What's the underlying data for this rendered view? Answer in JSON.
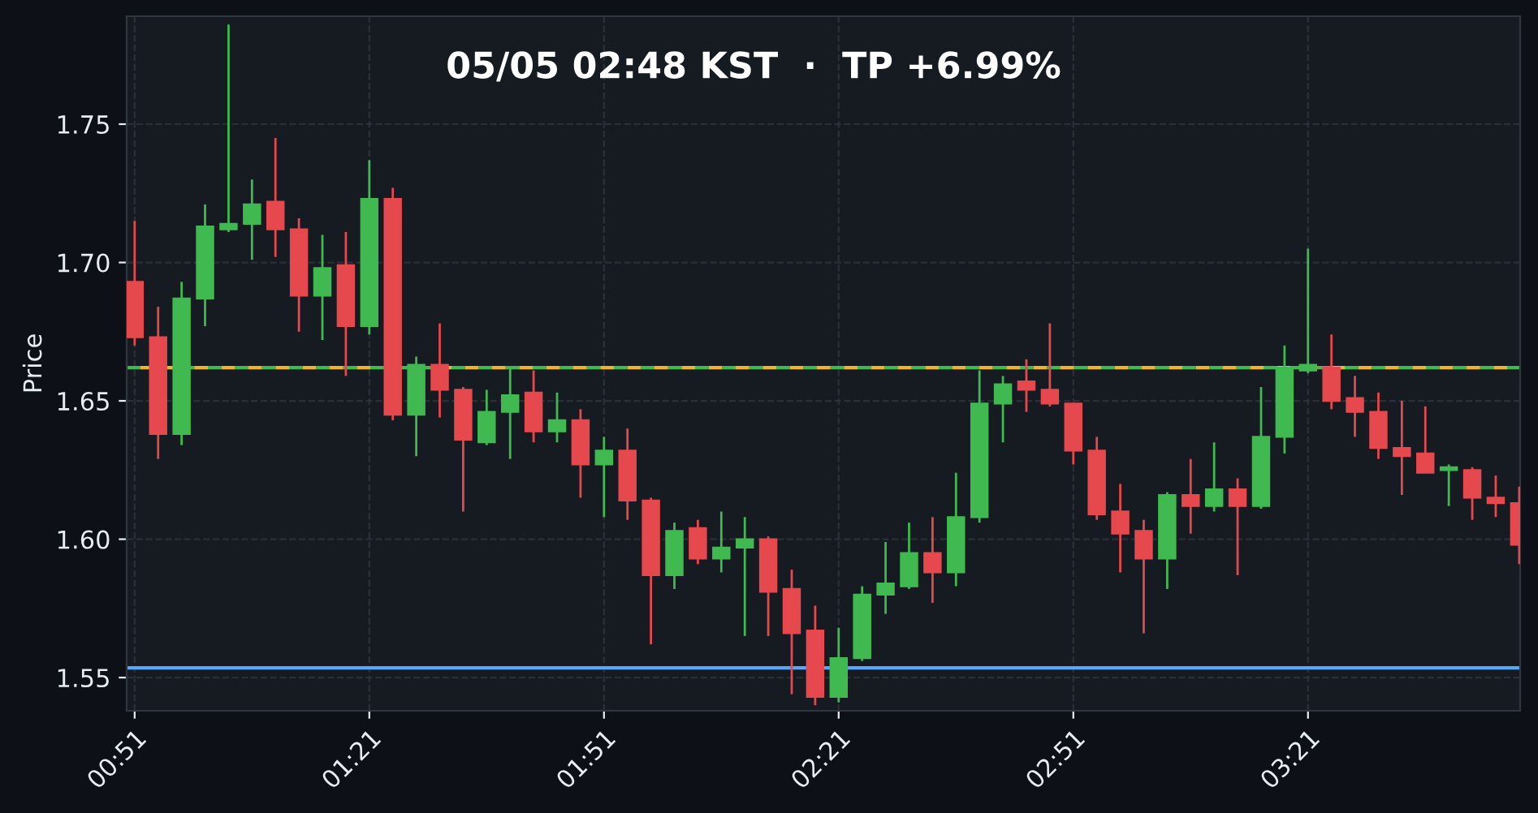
{
  "chart_data": {
    "type": "candlestick",
    "title": "05/05 02:48 KST  ·  TP +6.99%",
    "ylabel": "Price",
    "x": [
      0.85,
      0.9,
      0.95,
      1.0,
      1.05,
      1.1,
      1.15,
      1.2,
      1.25,
      1.3,
      1.35,
      1.4,
      1.45,
      1.5,
      1.55,
      1.6,
      1.65,
      1.7,
      1.75,
      1.8,
      1.85,
      1.9,
      1.95,
      2.0,
      2.05,
      2.1,
      2.15,
      2.2,
      2.25,
      2.3,
      2.35,
      2.4,
      2.45,
      2.5,
      2.55,
      2.6,
      2.65,
      2.7,
      2.75,
      2.8,
      2.85,
      2.9,
      2.95,
      3.0,
      3.05,
      3.1,
      3.15,
      3.2,
      3.25,
      3.3,
      3.35,
      3.4,
      3.45,
      3.5,
      3.55,
      3.6,
      3.65,
      3.7,
      3.75,
      3.8
    ],
    "ohlc": [
      [
        1.693,
        1.715,
        1.67,
        1.673
      ],
      [
        1.673,
        1.684,
        1.629,
        1.638
      ],
      [
        1.638,
        1.693,
        1.634,
        1.687
      ],
      [
        1.687,
        1.721,
        1.677,
        1.713
      ],
      [
        1.712,
        1.786,
        1.711,
        1.714
      ],
      [
        1.714,
        1.73,
        1.701,
        1.721
      ],
      [
        1.722,
        1.745,
        1.702,
        1.712
      ],
      [
        1.712,
        1.716,
        1.675,
        1.688
      ],
      [
        1.688,
        1.71,
        1.672,
        1.698
      ],
      [
        1.699,
        1.711,
        1.659,
        1.677
      ],
      [
        1.677,
        1.737,
        1.674,
        1.723
      ],
      [
        1.723,
        1.727,
        1.643,
        1.645
      ],
      [
        1.645,
        1.666,
        1.63,
        1.663
      ],
      [
        1.663,
        1.678,
        1.644,
        1.654
      ],
      [
        1.654,
        1.655,
        1.61,
        1.636
      ],
      [
        1.635,
        1.654,
        1.634,
        1.646
      ],
      [
        1.646,
        1.662,
        1.629,
        1.652
      ],
      [
        1.653,
        1.661,
        1.635,
        1.639
      ],
      [
        1.639,
        1.653,
        1.635,
        1.643
      ],
      [
        1.643,
        1.647,
        1.615,
        1.627
      ],
      [
        1.627,
        1.637,
        1.608,
        1.632
      ],
      [
        1.632,
        1.64,
        1.607,
        1.614
      ],
      [
        1.614,
        1.615,
        1.562,
        1.587
      ],
      [
        1.587,
        1.606,
        1.582,
        1.603
      ],
      [
        1.604,
        1.607,
        1.591,
        1.593
      ],
      [
        1.593,
        1.61,
        1.588,
        1.597
      ],
      [
        1.597,
        1.608,
        1.565,
        1.6
      ],
      [
        1.6,
        1.601,
        1.565,
        1.581
      ],
      [
        1.582,
        1.589,
        1.544,
        1.566
      ],
      [
        1.567,
        1.576,
        1.54,
        1.543
      ],
      [
        1.543,
        1.568,
        1.541,
        1.557
      ],
      [
        1.557,
        1.583,
        1.556,
        1.58
      ],
      [
        1.58,
        1.599,
        1.573,
        1.584
      ],
      [
        1.583,
        1.606,
        1.582,
        1.595
      ],
      [
        1.595,
        1.608,
        1.577,
        1.588
      ],
      [
        1.588,
        1.624,
        1.583,
        1.608
      ],
      [
        1.608,
        1.661,
        1.606,
        1.649
      ],
      [
        1.649,
        1.659,
        1.635,
        1.656
      ],
      [
        1.657,
        1.665,
        1.646,
        1.654
      ],
      [
        1.654,
        1.678,
        1.648,
        1.649
      ],
      [
        1.649,
        1.649,
        1.627,
        1.632
      ],
      [
        1.632,
        1.637,
        1.607,
        1.609
      ],
      [
        1.61,
        1.62,
        1.588,
        1.602
      ],
      [
        1.603,
        1.607,
        1.566,
        1.593
      ],
      [
        1.593,
        1.617,
        1.582,
        1.616
      ],
      [
        1.616,
        1.629,
        1.602,
        1.612
      ],
      [
        1.612,
        1.635,
        1.61,
        1.618
      ],
      [
        1.618,
        1.622,
        1.587,
        1.612
      ],
      [
        1.612,
        1.655,
        1.611,
        1.637
      ],
      [
        1.637,
        1.67,
        1.631,
        1.662
      ],
      [
        1.661,
        1.705,
        1.66,
        1.663
      ],
      [
        1.662,
        1.674,
        1.647,
        1.65
      ],
      [
        1.651,
        1.659,
        1.637,
        1.646
      ],
      [
        1.646,
        1.653,
        1.629,
        1.633
      ],
      [
        1.633,
        1.65,
        1.616,
        1.63
      ],
      [
        1.631,
        1.648,
        1.624,
        1.624
      ],
      [
        1.625,
        1.627,
        1.612,
        1.626
      ],
      [
        1.625,
        1.626,
        1.607,
        1.615
      ],
      [
        1.615,
        1.623,
        1.608,
        1.613
      ],
      [
        1.613,
        1.619,
        1.591,
        1.598
      ]
    ],
    "colors": [
      "#e5484d",
      "#e5484d",
      "#3fb950",
      "#3fb950",
      "#3fb950",
      "#3fb950",
      "#e5484d",
      "#e5484d",
      "#3fb950",
      "#e5484d",
      "#3fb950",
      "#e5484d",
      "#3fb950",
      "#e5484d",
      "#e5484d",
      "#3fb950",
      "#3fb950",
      "#e5484d",
      "#3fb950",
      "#e5484d",
      "#3fb950",
      "#e5484d",
      "#e5484d",
      "#3fb950",
      "#e5484d",
      "#3fb950",
      "#3fb950",
      "#e5484d",
      "#e5484d",
      "#e5484d",
      "#3fb950",
      "#3fb950",
      "#3fb950",
      "#3fb950",
      "#e5484d",
      "#3fb950",
      "#3fb950",
      "#3fb950",
      "#e5484d",
      "#e5484d",
      "#e5484d",
      "#e5484d",
      "#e5484d",
      "#e5484d",
      "#3fb950",
      "#e5484d",
      "#3fb950",
      "#e5484d",
      "#3fb950",
      "#3fb950",
      "#3fb950",
      "#e5484d",
      "#e5484d",
      "#e5484d",
      "#e5484d",
      "#e5484d",
      "#3fb950",
      "#e5484d",
      "#e5484d",
      "#e5484d"
    ],
    "xlim": [
      0.833,
      3.802
    ],
    "ylim": [
      1.538,
      1.789
    ],
    "xticks": [
      {
        "value": 0.85,
        "label": "00:51"
      },
      {
        "value": 1.35,
        "label": "01:21"
      },
      {
        "value": 1.85,
        "label": "01:51"
      },
      {
        "value": 2.35,
        "label": "02:21"
      },
      {
        "value": 2.85,
        "label": "02:51"
      },
      {
        "value": 3.35,
        "label": "03:21"
      }
    ],
    "yticks": [
      1.55,
      {
        "value": 1.6,
        "label": "1.60"
      },
      1.65,
      {
        "value": 1.7,
        "label": "1.70"
      },
      1.75
    ],
    "ref_lines": [
      {
        "axis": "y",
        "value": 1.662,
        "color": "#3fb950",
        "line_style": "dashed"
      },
      {
        "axis": "y",
        "value": 1.662,
        "color": "#f0b429",
        "line_style": "dashed"
      },
      {
        "axis": "y",
        "value": 1.5535,
        "color": "#58a6ff",
        "line_style": "solid"
      }
    ],
    "grid": true
  }
}
